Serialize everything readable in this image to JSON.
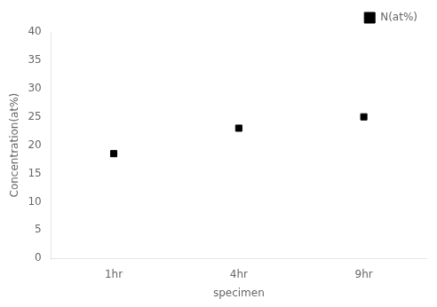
{
  "chart_data": {
    "type": "scatter",
    "categories": [
      "1hr",
      "4hr",
      "9hr"
    ],
    "series": [
      {
        "name": "N(at%)",
        "color": "#000000",
        "marker": "square",
        "values": [
          18.5,
          23.0,
          25.0
        ]
      }
    ],
    "x_label": "specimen",
    "y_label": "Concentration(at%)",
    "ylim": [
      0,
      40
    ],
    "yticks": [
      0,
      5,
      10,
      15,
      20,
      25,
      30,
      35,
      40
    ],
    "legend": "upper right",
    "grid": false
  }
}
